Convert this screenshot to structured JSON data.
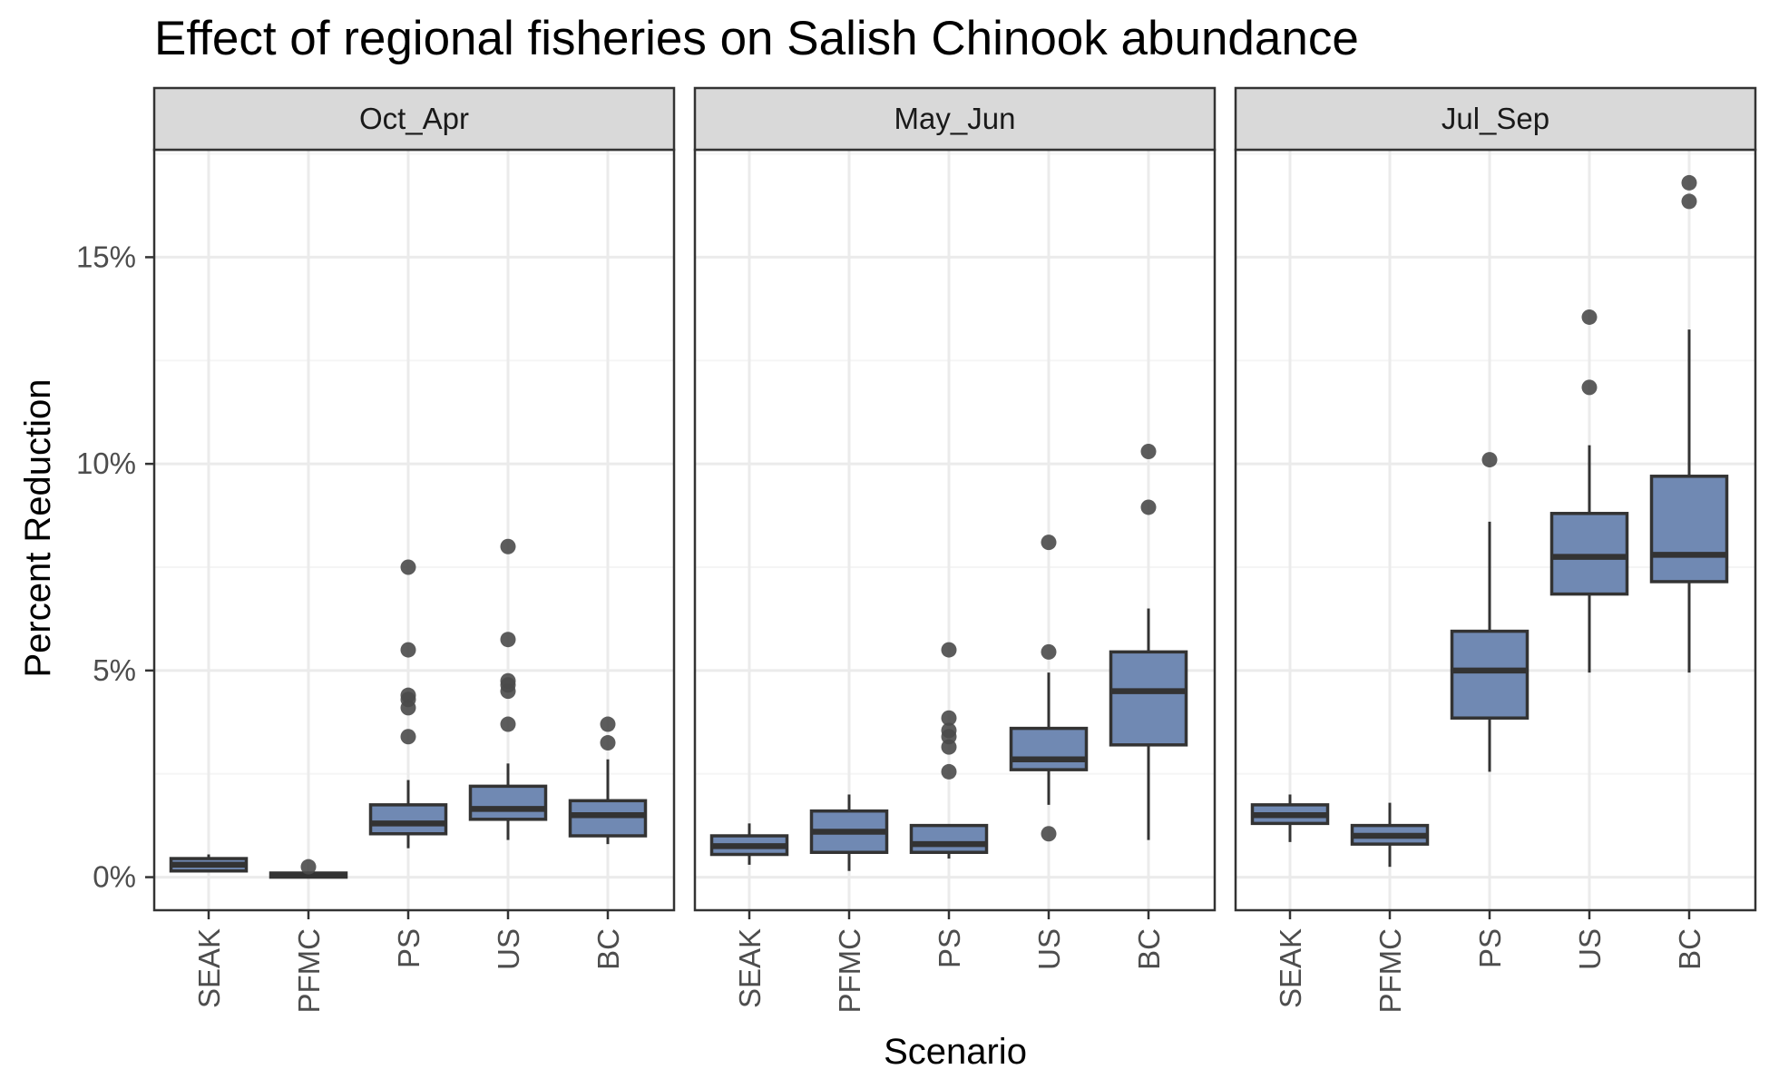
{
  "chart_data": {
    "type": "boxplot",
    "title": "Effect of regional fisheries on Salish Chinook abundance",
    "xlabel": "Scenario",
    "ylabel": "Percent Reduction",
    "ylim": [
      -0.8,
      17.6
    ],
    "y_ticks": [
      {
        "value": 0,
        "label": "0%"
      },
      {
        "value": 5,
        "label": "5%"
      },
      {
        "value": 10,
        "label": "10%"
      },
      {
        "value": 15,
        "label": "15%"
      }
    ],
    "y_minor_ticks": [
      2.5,
      7.5,
      12.5,
      17.5
    ],
    "grid": true,
    "categories": [
      "SEAK",
      "PFMC",
      "PS",
      "US",
      "BC"
    ],
    "colors": {
      "box_fill": "#7089b3",
      "box_stroke": "#333333",
      "outlier": "#4a4a4a",
      "strip_fill": "#d9d9d9",
      "grid_major": "#ebebeb",
      "grid_minor": "#f5f5f5",
      "panel_border": "#333333"
    },
    "panels": [
      {
        "name": "Oct_Apr",
        "boxes": [
          {
            "category": "SEAK",
            "min": 0.15,
            "q1": 0.15,
            "median": 0.3,
            "q3": 0.45,
            "max": 0.55,
            "outliers": []
          },
          {
            "category": "PFMC",
            "min": 0.0,
            "q1": 0.0,
            "median": 0.05,
            "q3": 0.1,
            "max": 0.1,
            "outliers": [
              0.25
            ]
          },
          {
            "category": "PS",
            "min": 0.7,
            "q1": 1.05,
            "median": 1.3,
            "q3": 1.75,
            "max": 2.35,
            "outliers": [
              3.4,
              4.1,
              4.3,
              4.4,
              5.5,
              7.5
            ]
          },
          {
            "category": "US",
            "min": 0.9,
            "q1": 1.4,
            "median": 1.65,
            "q3": 2.2,
            "max": 2.75,
            "outliers": [
              3.7,
              4.5,
              4.65,
              4.75,
              5.75,
              8.0
            ]
          },
          {
            "category": "BC",
            "min": 0.8,
            "q1": 1.0,
            "median": 1.5,
            "q3": 1.85,
            "max": 2.85,
            "outliers": [
              3.25,
              3.7
            ]
          }
        ]
      },
      {
        "name": "May_Jun",
        "boxes": [
          {
            "category": "SEAK",
            "min": 0.3,
            "q1": 0.55,
            "median": 0.75,
            "q3": 1.0,
            "max": 1.3,
            "outliers": []
          },
          {
            "category": "PFMC",
            "min": 0.15,
            "q1": 0.6,
            "median": 1.1,
            "q3": 1.6,
            "max": 2.0,
            "outliers": []
          },
          {
            "category": "PS",
            "min": 0.45,
            "q1": 0.6,
            "median": 0.8,
            "q3": 1.25,
            "max": 1.25,
            "outliers": [
              2.55,
              3.15,
              3.4,
              3.55,
              3.85,
              5.5
            ]
          },
          {
            "category": "US",
            "min": 1.75,
            "q1": 2.6,
            "median": 2.85,
            "q3": 3.6,
            "max": 4.95,
            "outliers": [
              1.05,
              5.45,
              8.1
            ]
          },
          {
            "category": "BC",
            "min": 0.9,
            "q1": 3.2,
            "median": 4.5,
            "q3": 5.45,
            "max": 6.5,
            "outliers": [
              8.95,
              10.3
            ]
          }
        ]
      },
      {
        "name": "Jul_Sep",
        "boxes": [
          {
            "category": "SEAK",
            "min": 0.85,
            "q1": 1.3,
            "median": 1.5,
            "q3": 1.75,
            "max": 2.0,
            "outliers": []
          },
          {
            "category": "PFMC",
            "min": 0.25,
            "q1": 0.8,
            "median": 1.0,
            "q3": 1.25,
            "max": 1.8,
            "outliers": []
          },
          {
            "category": "PS",
            "min": 2.55,
            "q1": 3.85,
            "median": 5.0,
            "q3": 5.95,
            "max": 8.6,
            "outliers": [
              10.1
            ]
          },
          {
            "category": "US",
            "min": 4.95,
            "q1": 6.85,
            "median": 7.75,
            "q3": 8.8,
            "max": 10.45,
            "outliers": [
              11.85,
              13.55
            ]
          },
          {
            "category": "BC",
            "min": 4.95,
            "q1": 7.15,
            "median": 7.8,
            "q3": 9.7,
            "max": 13.25,
            "outliers": [
              16.35,
              16.8
            ]
          }
        ]
      }
    ]
  }
}
